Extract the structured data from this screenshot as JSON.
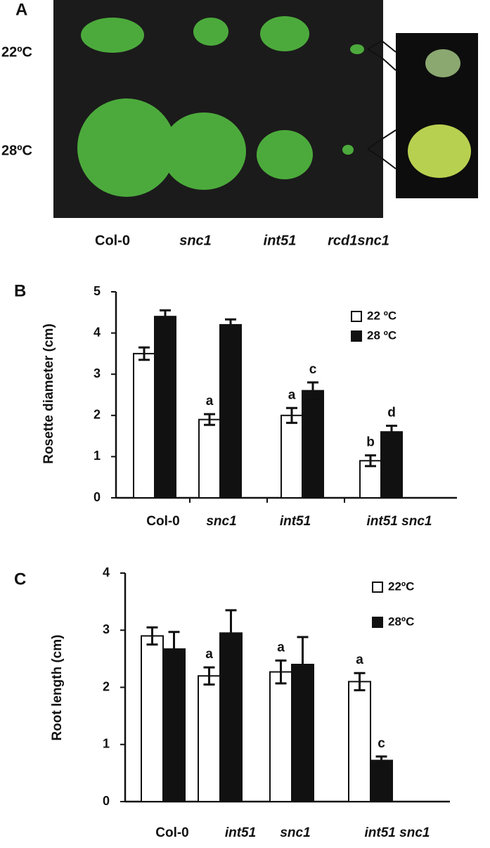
{
  "panel_a": {
    "label": "A",
    "rows": [
      "22ºC",
      "28ºC"
    ],
    "columns": [
      "Col-0",
      "snc1",
      "int51",
      "rcd1snc1"
    ]
  },
  "chart_data": [
    {
      "type": "bar",
      "panel_label": "B",
      "ylabel": "Rosette diameter (cm)",
      "categories": [
        "Col-0",
        "snc1",
        "int51",
        "int51 snc1"
      ],
      "ylim": [
        0,
        5
      ],
      "yticks": [
        0,
        1,
        2,
        3,
        4,
        5
      ],
      "series": [
        {
          "name": "22 ºC",
          "color": "#ffffff",
          "values": [
            3.5,
            1.9,
            2.0,
            0.9
          ],
          "errors": [
            0.15,
            0.13,
            0.18,
            0.13
          ],
          "letters": [
            null,
            "a",
            "a",
            "b"
          ]
        },
        {
          "name": "28 ºC",
          "color": "#111111",
          "values": [
            4.4,
            4.2,
            2.6,
            1.6
          ],
          "errors": [
            0.15,
            0.13,
            0.2,
            0.15
          ],
          "letters": [
            null,
            null,
            "c",
            "d"
          ]
        }
      ]
    },
    {
      "type": "bar",
      "panel_label": "C",
      "ylabel": "Root length (cm)",
      "categories": [
        "Col-0",
        "int51",
        "snc1",
        "int51 snc1"
      ],
      "ylim": [
        0,
        4
      ],
      "yticks": [
        0,
        1,
        2,
        3,
        4
      ],
      "series": [
        {
          "name": "22ºC",
          "color": "#ffffff",
          "values": [
            2.9,
            2.2,
            2.27,
            2.1
          ],
          "errors": [
            0.15,
            0.15,
            0.2,
            0.15
          ],
          "letters": [
            null,
            "a",
            "a",
            "a"
          ]
        },
        {
          "name": "28ºC",
          "color": "#111111",
          "values": [
            2.67,
            2.95,
            2.4,
            0.72
          ],
          "errors": [
            0.3,
            0.4,
            0.48,
            0.07
          ],
          "letters": [
            null,
            null,
            null,
            "c"
          ]
        }
      ]
    }
  ]
}
